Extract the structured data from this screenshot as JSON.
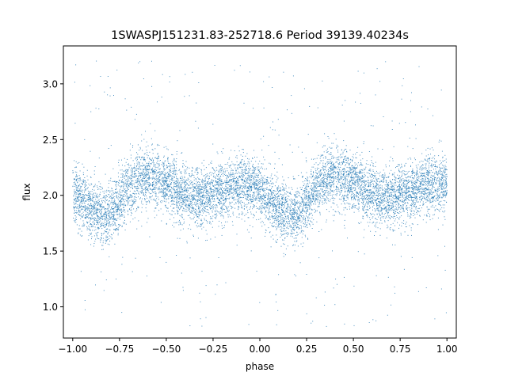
{
  "chart_data": {
    "type": "scatter",
    "title": "1SWASPJ151231.83-252718.6 Period 39139.40234s",
    "xlabel": "phase",
    "ylabel": "flux",
    "xlim": [
      -1.05,
      1.05
    ],
    "ylim": [
      0.72,
      3.34
    ],
    "xticks": [
      {
        "value": -1.0,
        "label": "−1.00"
      },
      {
        "value": -0.75,
        "label": "−0.75"
      },
      {
        "value": -0.5,
        "label": "−0.50"
      },
      {
        "value": -0.25,
        "label": "−0.25"
      },
      {
        "value": 0.0,
        "label": "0.00"
      },
      {
        "value": 0.25,
        "label": "0.25"
      },
      {
        "value": 0.5,
        "label": "0.50"
      },
      {
        "value": 0.75,
        "label": "0.75"
      },
      {
        "value": 1.0,
        "label": "1.00"
      }
    ],
    "yticks": [
      {
        "value": 1.0,
        "label": "1.0"
      },
      {
        "value": 1.5,
        "label": "1.5"
      },
      {
        "value": 2.0,
        "label": "2.0"
      },
      {
        "value": 2.5,
        "label": "2.5"
      },
      {
        "value": 3.0,
        "label": "3.0"
      }
    ],
    "series": [
      {
        "color": "#1f77b4",
        "phase_range": [
          -1.0,
          1.0
        ],
        "trend_phase": [
          -1.0,
          -0.95,
          -0.9,
          -0.82,
          -0.75,
          -0.68,
          -0.6,
          -0.5,
          -0.42,
          -0.32,
          -0.25,
          -0.15,
          -0.05,
          0.0,
          0.05,
          0.1,
          0.18,
          0.25,
          0.32,
          0.4,
          0.5,
          0.58,
          0.68,
          0.75,
          0.85,
          0.95,
          1.0
        ],
        "trend_flux": [
          2.02,
          1.95,
          1.88,
          1.8,
          1.95,
          2.12,
          2.18,
          2.12,
          2.02,
          1.97,
          2.02,
          2.08,
          2.1,
          2.05,
          1.95,
          1.88,
          1.8,
          1.95,
          2.12,
          2.18,
          2.12,
          2.02,
          1.97,
          2.02,
          2.08,
          2.12,
          2.1
        ],
        "core_scatter": 0.13,
        "outlier_range": [
          0.82,
          3.25
        ],
        "n_points_shown": 9000
      }
    ],
    "grid": false,
    "legend": "none"
  }
}
